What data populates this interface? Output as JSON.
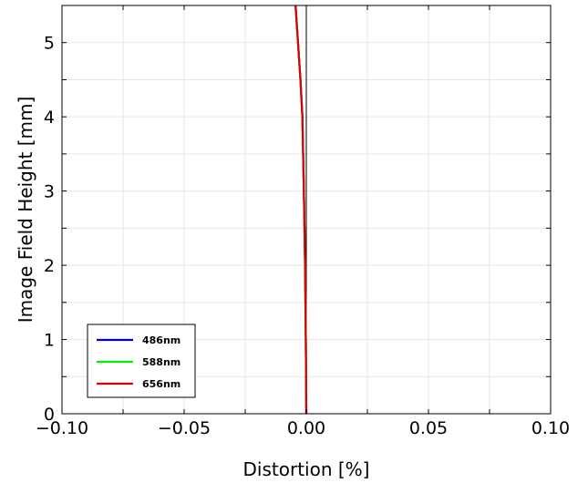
{
  "chart_data": {
    "type": "line",
    "title": "",
    "xlabel": "Distortion [%]",
    "ylabel": "Image Field Height [mm]",
    "xlim": [
      -0.1,
      0.1
    ],
    "ylim": [
      0,
      5.5
    ],
    "xticks": [
      -0.1,
      -0.05,
      0.0,
      0.05,
      0.1
    ],
    "xtick_labels": [
      "−0.10",
      "−0.05",
      "0.00",
      "0.05",
      "0.10"
    ],
    "yticks": [
      0,
      1,
      2,
      3,
      4,
      5
    ],
    "ytick_labels": [
      "0",
      "1",
      "2",
      "3",
      "4",
      "5"
    ],
    "grid": true,
    "legend_position": "bottom-left",
    "series": [
      {
        "name": "486nm",
        "color": "#0000cc",
        "x": [
          0.0,
          -0.0002,
          -0.0005,
          -0.001,
          -0.0016,
          -0.0024,
          -0.0034,
          -0.0044
        ],
        "y": [
          0,
          1.0,
          2.0,
          3.0,
          4.0,
          4.5,
          5.0,
          5.5
        ]
      },
      {
        "name": "588nm",
        "color": "#00ee00",
        "x": [
          0.0,
          -0.0002,
          -0.0005,
          -0.001,
          -0.0016,
          -0.0024,
          -0.0034,
          -0.0044
        ],
        "y": [
          0,
          1.0,
          2.0,
          3.0,
          4.0,
          4.5,
          5.0,
          5.5
        ]
      },
      {
        "name": "656nm",
        "color": "#dd0000",
        "x": [
          0.0,
          -0.0002,
          -0.0005,
          -0.001,
          -0.0016,
          -0.0024,
          -0.0034,
          -0.0044
        ],
        "y": [
          0,
          1.0,
          2.0,
          3.0,
          4.0,
          4.5,
          5.0,
          5.5
        ]
      }
    ]
  }
}
